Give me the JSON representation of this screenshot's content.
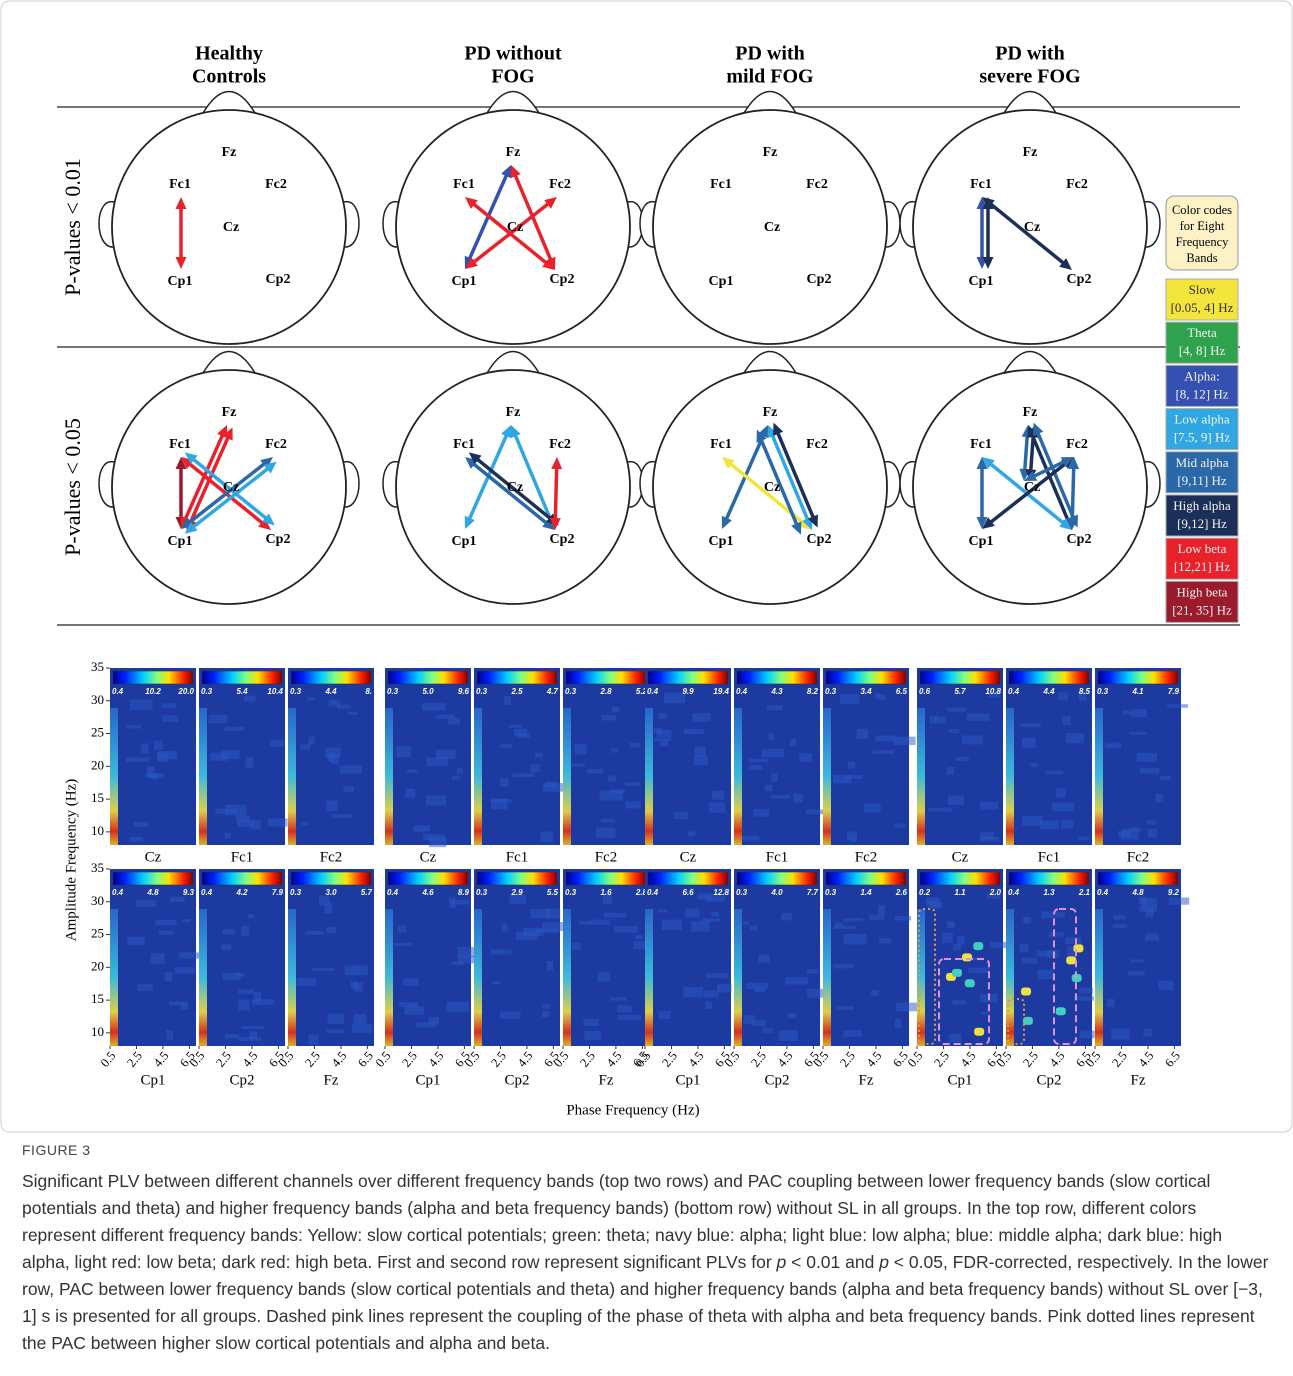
{
  "figure": {
    "groups": [
      [
        "Healthy",
        "Controls"
      ],
      [
        "PD without",
        "FOG"
      ],
      [
        "PD with",
        "mild FOG"
      ],
      [
        "PD with",
        "severe FOG"
      ]
    ],
    "row_labels": [
      "P-values < 0.01",
      "P-values  < 0.05"
    ],
    "electrodes": [
      "Fz",
      "Fc1",
      "Fc2",
      "Cz",
      "Cp1",
      "Cp2"
    ],
    "plv_connections": [
      [
        [
          [
            1,
            4,
            6
          ]
        ],
        [
          [
            0,
            4,
            2
          ],
          [
            0,
            5,
            6
          ],
          [
            1,
            5,
            6
          ],
          [
            2,
            4,
            6
          ]
        ],
        [],
        [
          [
            1,
            4,
            2
          ],
          [
            1,
            4,
            5
          ],
          [
            1,
            5,
            5
          ]
        ]
      ],
      [
        [
          [
            1,
            4,
            7
          ],
          [
            0,
            4,
            6
          ],
          [
            0,
            4,
            6
          ],
          [
            1,
            5,
            6
          ],
          [
            1,
            5,
            3
          ],
          [
            2,
            4,
            4
          ],
          [
            2,
            4,
            3
          ]
        ],
        [
          [
            0,
            4,
            3
          ],
          [
            0,
            5,
            3
          ],
          [
            1,
            5,
            4
          ],
          [
            1,
            5,
            5
          ],
          [
            2,
            5,
            6
          ]
        ],
        [
          [
            0,
            4,
            4
          ],
          [
            1,
            5,
            0
          ],
          [
            0,
            5,
            3
          ],
          [
            0,
            5,
            5
          ],
          [
            0,
            5,
            4
          ]
        ],
        [
          [
            0,
            3,
            4
          ],
          [
            0,
            3,
            5
          ],
          [
            0,
            5,
            5
          ],
          [
            0,
            5,
            4
          ],
          [
            1,
            4,
            4
          ],
          [
            1,
            5,
            3
          ],
          [
            2,
            4,
            5
          ],
          [
            2,
            3,
            4
          ],
          [
            2,
            5,
            4
          ]
        ]
      ]
    ],
    "legend": {
      "title": [
        "Color codes",
        "for Eight",
        "Frequency",
        "Bands"
      ],
      "bands": [
        {
          "name": "Slow",
          "range": "[0.05, 4] Hz",
          "color": "#f3e53c"
        },
        {
          "name": "Theta",
          "range": "[4, 8] Hz",
          "color": "#2ea24c"
        },
        {
          "name": "Alpha:",
          "range": "[8, 12] Hz",
          "color": "#3450b0"
        },
        {
          "name": "Low alpha",
          "range": "[7.5, 9] Hz",
          "color": "#2fa7e2"
        },
        {
          "name": "Mid alpha",
          "range": "[9,11] Hz",
          "color": "#2a68a8"
        },
        {
          "name": "High alpha",
          "range": "[9,12] Hz",
          "color": "#1c2f58"
        },
        {
          "name": "Low beta",
          "range": "[12,21] Hz",
          "color": "#e8212b"
        },
        {
          "name": "High beta",
          "range": "[21, 35] Hz",
          "color": "#9a1b2c"
        }
      ]
    },
    "pac": {
      "ylabel": "Amplitude Frequency (Hz)",
      "xlabel": "Phase Frequency (Hz)",
      "ylim": [
        8,
        35
      ],
      "yticks": [
        10,
        15,
        20,
        25,
        30,
        35
      ],
      "xlim": [
        0.5,
        7
      ],
      "xticks": [
        0.5,
        2.5,
        4.5,
        6.5
      ],
      "channels": [
        [
          "Cz",
          "Fc1",
          "Fc2"
        ],
        [
          "Cp1",
          "Cp2",
          "Fz"
        ]
      ],
      "colorbars": [
        [
          [
            [
              "0.4",
              "10.2",
              "20.0"
            ],
            [
              "0.3",
              "5.4",
              "10.4"
            ],
            [
              "0.3",
              "4.4",
              "8."
            ]
          ],
          [
            [
              "0.3",
              "5.0",
              "9.6"
            ],
            [
              "0.3",
              "2.5",
              "4.7"
            ],
            [
              "0.3",
              "2.8",
              "5.2"
            ]
          ],
          [
            [
              "0.4",
              "9.9",
              "19.4"
            ],
            [
              "0.4",
              "4.3",
              "8.2"
            ],
            [
              "0.3",
              "3.4",
              "6.5"
            ]
          ],
          [
            [
              "0.6",
              "5.7",
              "10.8"
            ],
            [
              "0.4",
              "4.4",
              "8.5"
            ],
            [
              "0.3",
              "4.1",
              "7.9"
            ]
          ]
        ],
        [
          [
            [
              "0.4",
              "4.8",
              "9.3"
            ],
            [
              "0.4",
              "4.2",
              "7.9"
            ],
            [
              "0.3",
              "3.0",
              "5.7"
            ]
          ],
          [
            [
              "0.4",
              "4.6",
              "8.9"
            ],
            [
              "0.3",
              "2.9",
              "5.5"
            ],
            [
              "0.3",
              "1.6",
              "2.8"
            ]
          ],
          [
            [
              "0.4",
              "6.6",
              "12.8"
            ],
            [
              "0.3",
              "4.0",
              "7.7"
            ],
            [
              "0.3",
              "1.4",
              "2.6"
            ]
          ],
          [
            [
              "0.2",
              "1.1",
              "2.0"
            ],
            [
              "0.4",
              "1.3",
              "2.1"
            ],
            [
              "0.4",
              "4.8",
              "9.2"
            ]
          ]
        ]
      ]
    }
  },
  "caption": {
    "label": "FIGURE 3",
    "parts": [
      "Significant PLV between different channels over different frequency bands (top two rows) and PAC coupling between lower frequency bands (slow cortical potentials and theta) and higher frequency bands (alpha and beta frequency bands) (bottom row) without SL in all groups. In the top row, different colors represent different frequency bands: Yellow: slow cortical potentials; green: theta; navy blue: alpha; light blue: low alpha; blue: middle alpha; dark blue: high alpha, light red: low beta; dark red: high beta. First and second row represent significant PLVs for ",
      "p",
      " < 0.01 and ",
      "p",
      " < 0.05, FDR-corrected, respectively. In the lower row, PAC between lower frequency bands (slow cortical potentials and theta) and higher frequency bands (alpha and beta frequency bands) without SL over [−3, 1] s is presented for all groups. Dashed pink lines represent the coupling of the phase of theta with alpha and beta frequency bands. Pink dotted lines represent the PAC between higher slow cortical potentials and alpha and beta."
    ]
  }
}
